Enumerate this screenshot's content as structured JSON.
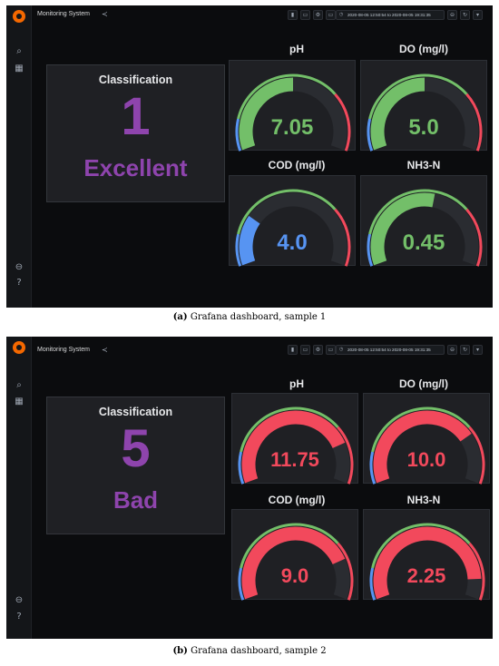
{
  "colors": {
    "green": "#73bf69",
    "red": "#f2495c",
    "blue": "#5794f2",
    "purple": "#8e44ad",
    "track": "#2a2c31"
  },
  "dashboards": [
    {
      "title": "Monitoring System",
      "time_range": "2020-08-05 12:50:54 to 2020-08-05 19:31:35",
      "classification": {
        "title": "Classification",
        "number": "1",
        "label": "Excellent"
      },
      "gauges": [
        {
          "title": "pH",
          "value": "7.05",
          "fill": 0.5,
          "color": "#73bf69"
        },
        {
          "title": "DO (mg/l)",
          "value": "5.0",
          "fill": 0.5,
          "color": "#73bf69"
        },
        {
          "title": "COD (mg/l)",
          "value": "4.0",
          "fill": 0.25,
          "color": "#5794f2"
        },
        {
          "title": "NH3-N",
          "value": "0.45",
          "fill": 0.55,
          "color": "#73bf69"
        }
      ],
      "caption_label": "(a)",
      "caption_text": "Grafana dashboard, sample 1"
    },
    {
      "title": "Monitoring System",
      "time_range": "2020-08-05 12:50:54 to 2020-08-05 19:31:35",
      "classification": {
        "title": "Classification",
        "number": "5",
        "label": "Bad"
      },
      "gauges": [
        {
          "title": "pH",
          "value": "11.75",
          "fill": 0.8,
          "color": "#f2495c"
        },
        {
          "title": "DO (mg/l)",
          "value": "10.0",
          "fill": 0.75,
          "color": "#f2495c"
        },
        {
          "title": "COD (mg/l)",
          "value": "9.0",
          "fill": 0.8,
          "color": "#f2495c"
        },
        {
          "title": "NH3-N",
          "value": "2.25",
          "fill": 0.9,
          "color": "#f2495c"
        }
      ],
      "caption_label": "(b)",
      "caption_text": "Grafana dashboard, sample 2"
    }
  ]
}
